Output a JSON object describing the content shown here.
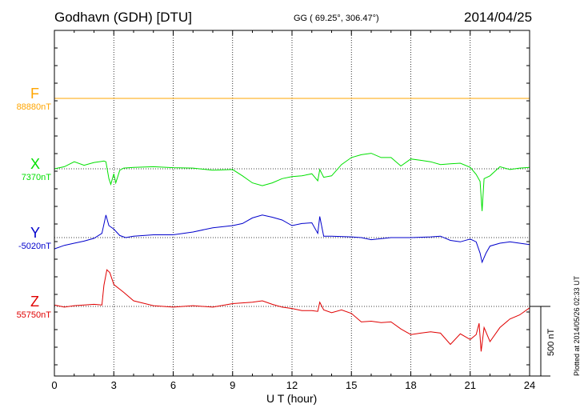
{
  "header": {
    "station": "Godhavn (GDH)  [DTU]",
    "coords": "GG ( 69.25°, 306.47°)",
    "date": "2014/04/25"
  },
  "side": {
    "plotted": "Plotted at 2014/05/26 02:33 UT",
    "scale": "500 nT"
  },
  "chart_data": {
    "type": "line",
    "xlabel": "U T (hour)",
    "xlim": [
      0,
      24
    ],
    "xticks": [
      0,
      3,
      6,
      9,
      12,
      15,
      18,
      21,
      24
    ],
    "grid": true,
    "scale_bar_nT": 500,
    "series": [
      {
        "name": "F",
        "baseline_label": "88880nT",
        "color": "#ffa500",
        "x": [
          0,
          24
        ],
        "y": [
          88880,
          88880
        ]
      },
      {
        "name": "X",
        "baseline_label": "7370nT",
        "color": "#00e000",
        "x": [
          0,
          0.5,
          1.0,
          1.5,
          2.0,
          2.5,
          2.6,
          2.75,
          2.85,
          3.0,
          3.1,
          3.3,
          3.5,
          4.0,
          5.0,
          6.0,
          7.0,
          8.0,
          9.0,
          9.5,
          10.0,
          10.5,
          11.0,
          11.5,
          12.0,
          12.5,
          13.0,
          13.3,
          13.4,
          13.6,
          14.0,
          14.5,
          15.0,
          15.5,
          16.0,
          16.5,
          17.0,
          17.5,
          18.0,
          18.5,
          19.0,
          19.5,
          20.0,
          20.5,
          21.0,
          21.3,
          21.5,
          21.6,
          21.7,
          22.0,
          22.5,
          23.0,
          23.5,
          24.0
        ],
        "y": [
          7370,
          7385,
          7420,
          7395,
          7415,
          7425,
          7420,
          7300,
          7260,
          7335,
          7270,
          7360,
          7375,
          7380,
          7385,
          7378,
          7375,
          7360,
          7365,
          7320,
          7270,
          7250,
          7270,
          7300,
          7315,
          7320,
          7335,
          7285,
          7365,
          7310,
          7320,
          7400,
          7450,
          7470,
          7480,
          7450,
          7450,
          7390,
          7440,
          7430,
          7420,
          7400,
          7405,
          7410,
          7380,
          7330,
          7280,
          7070,
          7300,
          7320,
          7385,
          7365,
          7375,
          7380
        ]
      },
      {
        "name": "Y",
        "baseline_label": "-5020nT",
        "color": "#0000cc",
        "x": [
          0,
          0.5,
          1.0,
          1.5,
          2.0,
          2.4,
          2.6,
          2.75,
          3.0,
          3.3,
          3.6,
          4.0,
          5.0,
          6.0,
          7.0,
          8.0,
          9.0,
          9.5,
          10.0,
          10.5,
          11.0,
          11.5,
          12.0,
          12.5,
          13.0,
          13.3,
          13.4,
          13.6,
          14.0,
          15.0,
          15.5,
          16.0,
          17.0,
          18.0,
          19.0,
          19.5,
          20.0,
          20.5,
          21.0,
          21.3,
          21.5,
          21.6,
          21.8,
          22.0,
          22.5,
          23.0,
          23.5,
          24.0
        ],
        "y": [
          -5100,
          -5075,
          -5060,
          -5045,
          -5025,
          -4990,
          -4860,
          -4935,
          -4960,
          -5005,
          -5020,
          -5010,
          -5000,
          -5000,
          -4980,
          -4950,
          -4935,
          -4920,
          -4880,
          -4860,
          -4875,
          -4895,
          -4935,
          -4920,
          -4915,
          -4990,
          -4870,
          -5010,
          -5010,
          -5015,
          -5020,
          -5035,
          -5020,
          -5020,
          -5015,
          -5010,
          -5040,
          -5050,
          -5030,
          -5050,
          -5130,
          -5195,
          -5130,
          -5080,
          -5060,
          -5050,
          -5060,
          -5070
        ]
      },
      {
        "name": "Z",
        "baseline_label": "55750nT",
        "color": "#e00000",
        "x": [
          0,
          0.5,
          1.0,
          1.5,
          2.0,
          2.4,
          2.5,
          2.65,
          2.8,
          3.0,
          3.5,
          4.0,
          5.0,
          6.0,
          7.0,
          8.0,
          9.0,
          10.0,
          10.5,
          11.0,
          11.5,
          12.0,
          12.5,
          13.0,
          13.3,
          13.4,
          13.6,
          14.0,
          14.5,
          15.0,
          15.5,
          16.0,
          16.5,
          17.0,
          17.5,
          18.0,
          18.5,
          19.0,
          19.5,
          20.0,
          20.5,
          21.0,
          21.3,
          21.45,
          21.55,
          21.7,
          22.0,
          22.5,
          23.0,
          23.5,
          24.0
        ],
        "y": [
          55760,
          55745,
          55755,
          55760,
          55765,
          55760,
          55900,
          56010,
          55990,
          55905,
          55850,
          55790,
          55755,
          55745,
          55755,
          55745,
          55770,
          55780,
          55790,
          55765,
          55745,
          55735,
          55720,
          55720,
          55715,
          55780,
          55725,
          55705,
          55725,
          55700,
          55640,
          55645,
          55635,
          55640,
          55590,
          55550,
          55560,
          55570,
          55560,
          55480,
          55555,
          55515,
          55550,
          55630,
          55430,
          55600,
          55500,
          55600,
          55660,
          55690,
          55740
        ]
      }
    ]
  }
}
